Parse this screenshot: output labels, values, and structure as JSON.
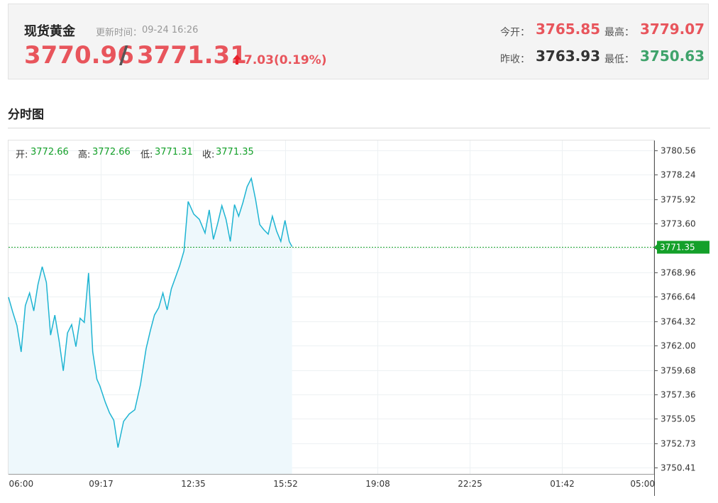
{
  "quote": {
    "name": "现货黄金",
    "update_label": "更新时间：",
    "update_time": "09-24 16:26",
    "bid": "3770.96",
    "separator": "/",
    "ask": "3771.31",
    "change": "7.03(0.19%)",
    "open_label": "今开：",
    "open": "3765.85",
    "high_label": "最高：",
    "high": "3779.07",
    "prev_close_label": "昨收：",
    "prev_close": "3763.93",
    "low_label": "最低：",
    "low": "3750.63",
    "colors": {
      "up": "#e8555c",
      "down": "#3fa36b",
      "neutral": "#333333"
    }
  },
  "section": {
    "title": "分时图"
  },
  "ohlc_bar": {
    "open_label": "开:",
    "open": "3772.66",
    "high_label": "高:",
    "high": "3772.66",
    "low_label": "低:",
    "low": "3771.31",
    "close_label": "收:",
    "close": "3771.35"
  },
  "chart_data": {
    "type": "area",
    "title": "",
    "xlabel": "",
    "ylabel": "",
    "x_ticks": [
      "06:00",
      "09:17",
      "12:35",
      "15:52",
      "19:08",
      "22:25",
      "01:42",
      "05:00"
    ],
    "y_ticks": [
      3780.56,
      3778.24,
      3775.92,
      3773.6,
      3771.28,
      3768.96,
      3766.64,
      3764.32,
      3762.0,
      3759.68,
      3757.36,
      3755.05,
      3752.73,
      3750.41
    ],
    "ylim": [
      3749.8,
      3781.5
    ],
    "reference_line": 3771.35,
    "current_price": "3771.35",
    "series": [
      {
        "x_hours": [
          0,
          0.15,
          0.3,
          0.45,
          0.6,
          0.75,
          0.9,
          1.05,
          1.2,
          1.35,
          1.5,
          1.65,
          1.8,
          1.95,
          2.1,
          2.25,
          2.4,
          2.55,
          2.7,
          2.85,
          3.0,
          3.15,
          3.25,
          3.45,
          3.6,
          3.75,
          3.9,
          4.1,
          4.3,
          4.5,
          4.7,
          4.9,
          5.05,
          5.2,
          5.35,
          5.5,
          5.65,
          5.8,
          5.95,
          6.1,
          6.25,
          6.4,
          6.6,
          6.8,
          7.0,
          7.15,
          7.3,
          7.45,
          7.6,
          7.75,
          7.9,
          8.05,
          8.2,
          8.35,
          8.5,
          8.65,
          8.8,
          8.95,
          9.1,
          9.25,
          9.4,
          9.55,
          9.7,
          9.85,
          10.0,
          10.1
        ],
        "values": [
          3766.6,
          3765.2,
          3763.9,
          3761.4,
          3765.8,
          3767.0,
          3765.3,
          3767.8,
          3769.5,
          3768.0,
          3763.0,
          3764.9,
          3762.5,
          3759.6,
          3763.2,
          3764.0,
          3761.9,
          3764.6,
          3764.2,
          3768.9,
          3761.4,
          3758.8,
          3758.2,
          3756.6,
          3755.6,
          3754.9,
          3752.3,
          3754.8,
          3755.5,
          3755.9,
          3758.3,
          3761.7,
          3763.4,
          3764.9,
          3765.6,
          3767.0,
          3765.4,
          3767.4,
          3768.5,
          3769.6,
          3771.0,
          3775.7,
          3774.5,
          3774.0,
          3772.7,
          3774.9,
          3772.1,
          3773.6,
          3775.3,
          3774.0,
          3771.9,
          3775.4,
          3774.3,
          3775.6,
          3777.1,
          3777.9,
          3775.9,
          3773.5,
          3773.0,
          3772.6,
          3774.3,
          3772.9,
          3771.9,
          3773.9,
          3771.9,
          3771.4
        ]
      }
    ]
  }
}
